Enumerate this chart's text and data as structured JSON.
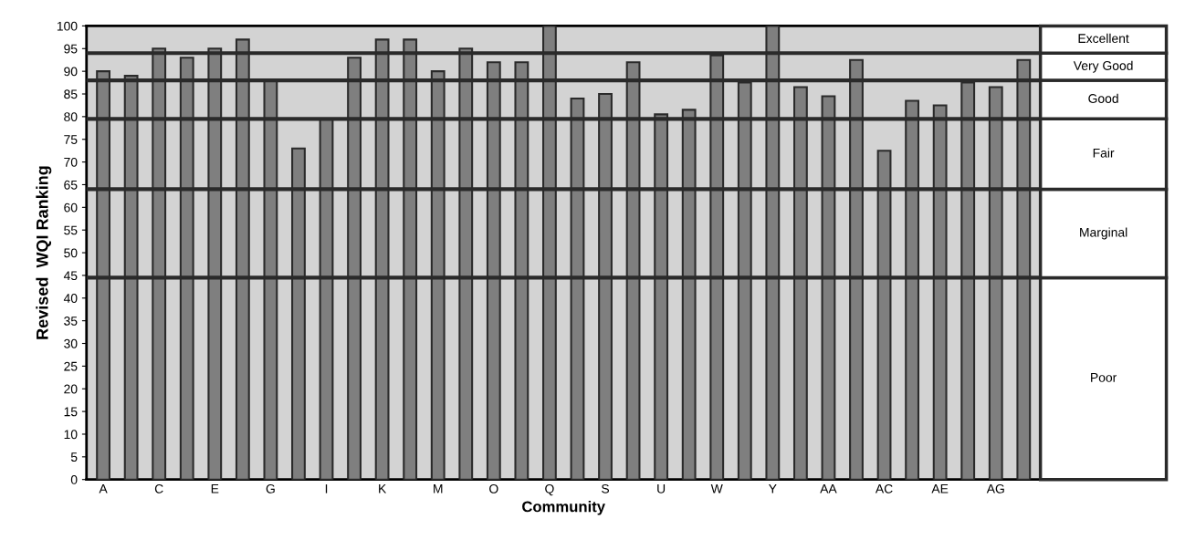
{
  "chart_data": {
    "type": "bar",
    "xlabel": "Community",
    "ylabel": "Revised  WQI Ranking",
    "categories": [
      "A",
      null,
      "C",
      null,
      "E",
      null,
      "G",
      null,
      "I",
      null,
      "K",
      null,
      "M",
      null,
      "O",
      null,
      "Q",
      null,
      "S",
      null,
      "U",
      null,
      "W",
      null,
      "Y",
      null,
      "AA",
      null,
      "AC",
      null,
      "AE",
      null,
      "AG",
      null
    ],
    "values": [
      90,
      89,
      95,
      93,
      95,
      97,
      88,
      73,
      79.5,
      93,
      97,
      97,
      90,
      95,
      92,
      92,
      100,
      84,
      85,
      92,
      80.5,
      81.5,
      93.5,
      87.5,
      100,
      86.5,
      84.5,
      92.5,
      72.5,
      83.5,
      82.5,
      87.5,
      86.5,
      92.5
    ],
    "color": "#7f7f7f",
    "ylim": [
      0,
      100
    ],
    "yticks": [
      0,
      5,
      10,
      15,
      20,
      25,
      30,
      35,
      40,
      45,
      50,
      55,
      60,
      65,
      70,
      75,
      80,
      85,
      90,
      95,
      100
    ],
    "ref_lines": [
      {
        "axis": "y",
        "value": 94,
        "color": "#2a2a2a"
      },
      {
        "axis": "y",
        "value": 88,
        "color": "#2a2a2a"
      },
      {
        "axis": "y",
        "value": 79.5,
        "color": "#2a2a2a"
      },
      {
        "axis": "y",
        "value": 64,
        "color": "#2a2a2a"
      },
      {
        "axis": "y",
        "value": 44.5,
        "color": "#2a2a2a"
      }
    ],
    "annotations": [
      "Excellent",
      "Very Good",
      "Good",
      "Fair",
      "Marginal",
      "Poor"
    ],
    "grid": false,
    "legend": false
  }
}
